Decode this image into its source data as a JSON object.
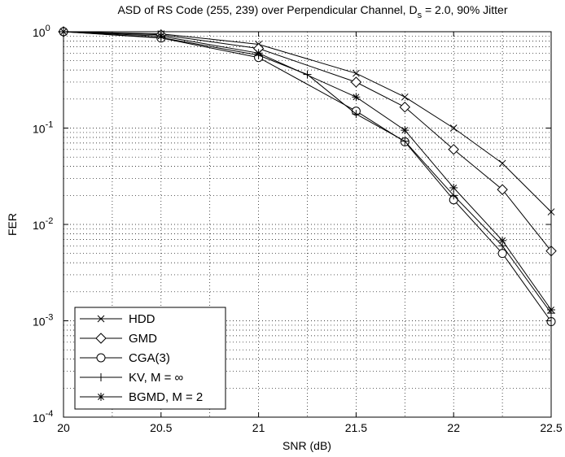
{
  "chart_data": {
    "type": "line",
    "title": "ASD of RS Code (255, 239) over Perpendicular Channel, D",
    "title_sub": "s",
    "title_tail": " = 2.0, 90% Jitter",
    "xlabel": "SNR (dB)",
    "ylabel": "FER",
    "xlim": [
      20,
      22.5
    ],
    "ylim": [
      0.0001,
      1
    ],
    "yscale": "log",
    "grid": true,
    "legend_position": "bottom-left",
    "x_ticks": [
      20,
      20.5,
      21,
      21.5,
      22,
      22.5
    ],
    "x_tick_labels": [
      "20",
      "20.5",
      "21",
      "21.5",
      "22",
      "22.5"
    ],
    "y_tick_labels": [
      {
        "base": "10",
        "exp": "0",
        "value": 1
      },
      {
        "base": "10",
        "exp": "-1",
        "value": 0.1
      },
      {
        "base": "10",
        "exp": "-2",
        "value": 0.01
      },
      {
        "base": "10",
        "exp": "-3",
        "value": 0.001
      },
      {
        "base": "10",
        "exp": "-4",
        "value": 0.0001
      }
    ],
    "series": [
      {
        "name": "HDD",
        "marker": "x",
        "x": [
          20,
          20.5,
          21,
          21.5,
          21.75,
          22,
          22.25,
          22.5
        ],
        "y": [
          1.0,
          0.95,
          0.74,
          0.37,
          0.21,
          0.1,
          0.043,
          0.0135
        ]
      },
      {
        "name": "GMD",
        "marker": "diamond",
        "x": [
          20,
          20.5,
          21,
          21.5,
          21.75,
          22,
          22.25,
          22.5
        ],
        "y": [
          1.0,
          0.93,
          0.67,
          0.3,
          0.165,
          0.06,
          0.023,
          0.0053
        ]
      },
      {
        "name": "CGA(3)",
        "marker": "circle",
        "x": [
          20,
          20.5,
          21,
          21.5,
          21.75,
          22,
          22.25,
          22.5
        ],
        "y": [
          1.0,
          0.86,
          0.54,
          0.15,
          0.072,
          0.018,
          0.005,
          0.00098
        ]
      },
      {
        "name": "KV, M = ∞",
        "marker": "plus",
        "x": [
          20,
          20.5,
          21,
          21.25,
          21.5,
          21.75,
          22,
          22.25,
          22.5
        ],
        "y": [
          1.0,
          0.87,
          0.57,
          0.36,
          0.14,
          0.073,
          0.02,
          0.006,
          0.0012
        ]
      },
      {
        "name": "BGMD, M = 2",
        "marker": "star",
        "x": [
          20,
          20.5,
          21,
          21.5,
          21.75,
          22,
          22.25,
          22.5
        ],
        "y": [
          1.0,
          0.9,
          0.6,
          0.21,
          0.095,
          0.024,
          0.0068,
          0.0013
        ]
      }
    ]
  }
}
